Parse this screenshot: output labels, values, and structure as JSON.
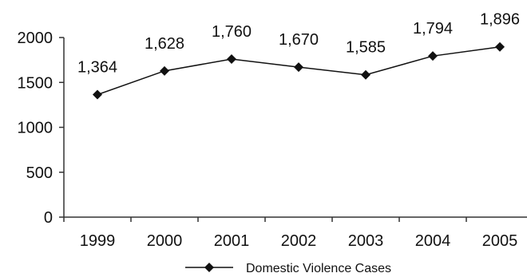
{
  "chart_data": {
    "type": "line",
    "categories": [
      "1999",
      "2000",
      "2001",
      "2002",
      "2003",
      "2004",
      "2005"
    ],
    "series": [
      {
        "name": "Domestic Violence Cases",
        "values": [
          1364,
          1628,
          1760,
          1670,
          1585,
          1794,
          1896
        ],
        "data_labels": [
          "1,364",
          "1,628",
          "1,760",
          "1,670",
          "1,585",
          "1,794",
          "1,896"
        ],
        "marker": "diamond"
      }
    ],
    "title": "",
    "xlabel": "",
    "ylabel": "",
    "ylim": [
      0,
      2000
    ],
    "y_ticks": [
      "0",
      "500",
      "1000",
      "1500",
      "2000"
    ],
    "grid": false,
    "legend_position": "bottom",
    "colors": {
      "line": "#111111",
      "axis": "#333333",
      "text": "#111111"
    }
  }
}
